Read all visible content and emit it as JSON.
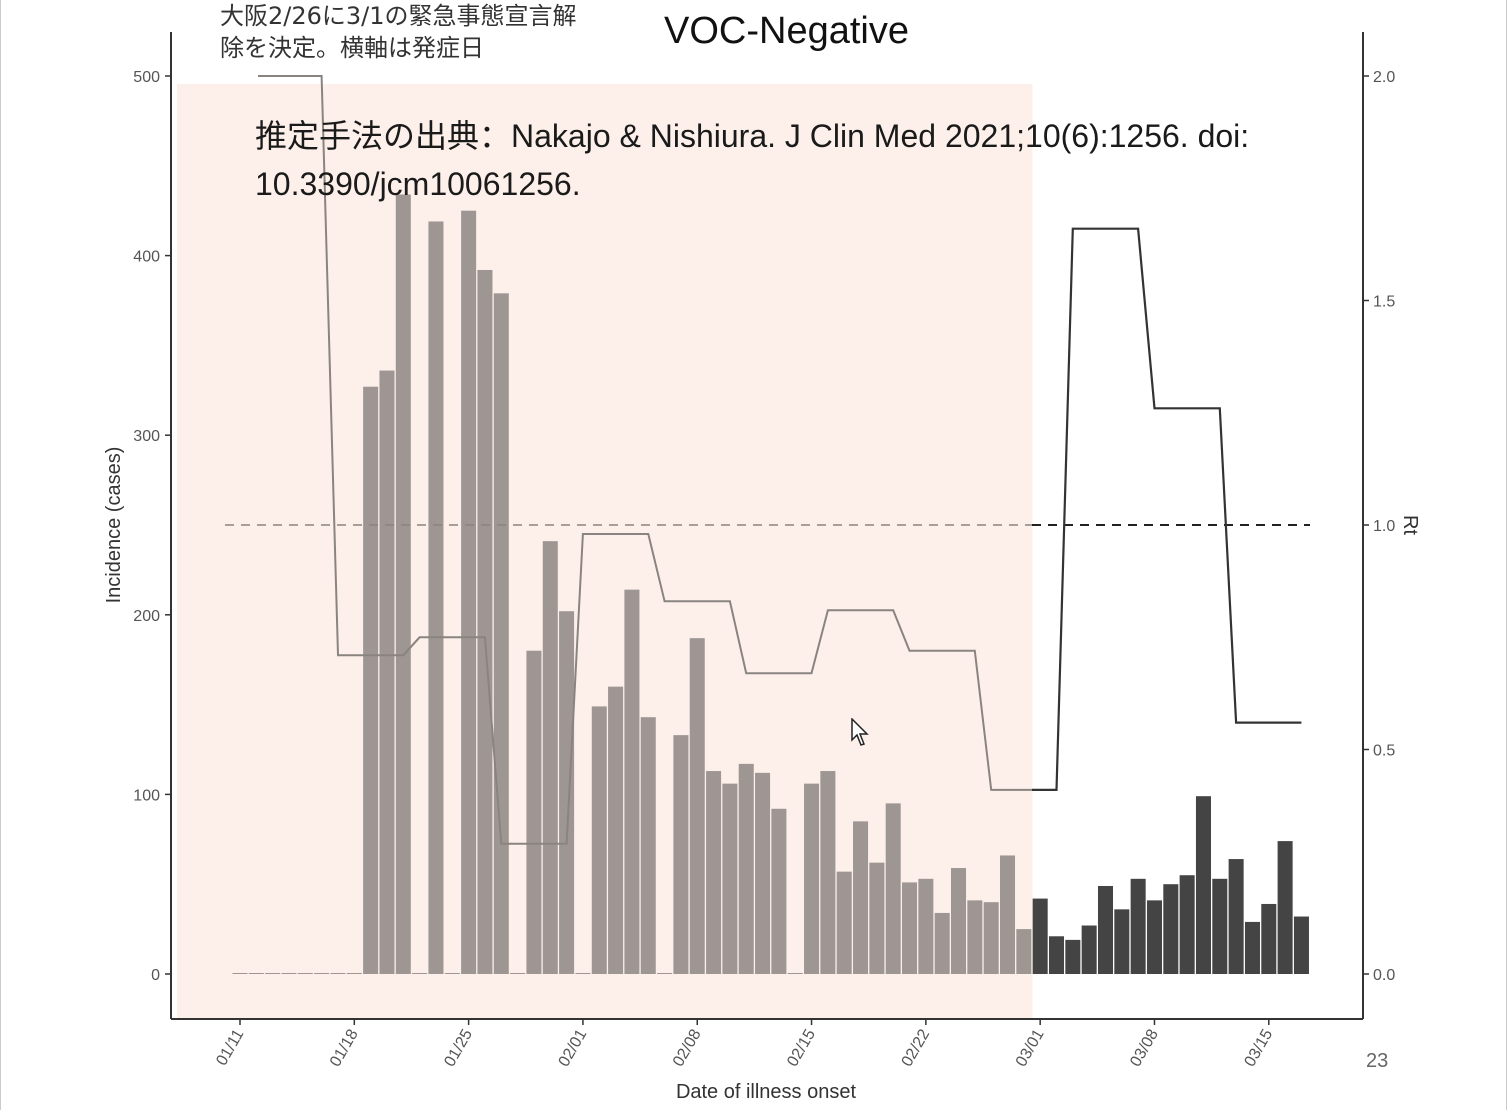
{
  "slide": {
    "note": "大阪2/26に3/1の緊急事態宣言解\n除を決定。横軸は発症日",
    "title": "VOC-Negative",
    "citation": "推定手法の出典：Nakajo & Nishiura.  J Clin Med 2021;10(6):1256. doi: 10.3390/jcm10061256.",
    "slide_number": "23"
  },
  "colors": {
    "shade": "#fdf0ea",
    "bar_before": "#9e9692",
    "bar_after": "#444444",
    "rt_line": "#333333",
    "axis": "#333333"
  },
  "chart_data": {
    "type": "bar",
    "title": "VOC-Negative",
    "xlabel": "Date of illness onset",
    "ylabel": "Incidence (cases)",
    "y2label": "Rt",
    "x_ticks": [
      "01/11",
      "01/18",
      "01/25",
      "02/01",
      "02/08",
      "02/15",
      "02/22",
      "03/01",
      "03/08",
      "03/15"
    ],
    "y_ticks": [
      "0",
      "100",
      "200",
      "300",
      "400",
      "500"
    ],
    "y2_ticks": [
      "0.0",
      "0.5",
      "1.0",
      "1.5",
      "2.0"
    ],
    "ylim": [
      0,
      500
    ],
    "y2lim": [
      0,
      2
    ],
    "shaded_until": "02/28",
    "dates": [
      "01/11",
      "01/12",
      "01/13",
      "01/14",
      "01/15",
      "01/16",
      "01/17",
      "01/18",
      "01/19",
      "01/20",
      "01/21",
      "01/22",
      "01/23",
      "01/24",
      "01/25",
      "01/26",
      "01/27",
      "01/28",
      "01/29",
      "01/30",
      "01/31",
      "02/01",
      "02/02",
      "02/03",
      "02/04",
      "02/05",
      "02/06",
      "02/07",
      "02/08",
      "02/09",
      "02/10",
      "02/11",
      "02/12",
      "02/13",
      "02/14",
      "02/15",
      "02/16",
      "02/17",
      "02/18",
      "02/19",
      "02/20",
      "02/21",
      "02/22",
      "02/23",
      "02/24",
      "02/25",
      "02/26",
      "02/27",
      "02/28",
      "03/01",
      "03/02",
      "03/03",
      "03/04",
      "03/05",
      "03/06",
      "03/07",
      "03/08",
      "03/09",
      "03/10",
      "03/11",
      "03/12",
      "03/13",
      "03/14",
      "03/15",
      "03/16",
      "03/17"
    ],
    "series": [
      {
        "name": "Incidence",
        "values": [
          0,
          0,
          0,
          0,
          0,
          0,
          0,
          0,
          327,
          336,
          434,
          0,
          419,
          0,
          425,
          392,
          379,
          0,
          180,
          241,
          202,
          0,
          149,
          160,
          214,
          143,
          0,
          133,
          187,
          113,
          106,
          117,
          112,
          92,
          0,
          106,
          113,
          57,
          85,
          62,
          95,
          51,
          53,
          34,
          59,
          41,
          40,
          66,
          25,
          42,
          21,
          19,
          27,
          49,
          36,
          53,
          41,
          50,
          55,
          99,
          53,
          64,
          29,
          39,
          74,
          32
        ]
      },
      {
        "name": "Rt",
        "values": [
          2.0,
          2.0,
          2.0,
          2.0,
          2.0,
          2.0,
          0.71,
          0.71,
          0.71,
          0.71,
          0.71,
          0.75,
          0.75,
          0.75,
          0.75,
          0.75,
          0.29,
          0.29,
          0.29,
          0.29,
          0.29,
          0.98,
          0.98,
          0.98,
          0.98,
          0.98,
          0.83,
          0.83,
          0.83,
          0.83,
          0.83,
          0.67,
          0.67,
          0.67,
          0.67,
          0.67,
          0.81,
          0.81,
          0.81,
          0.81,
          0.81,
          0.72,
          0.72,
          0.72,
          0.72,
          0.72,
          0.41,
          0.41,
          0.41,
          0.41,
          0.41,
          1.66,
          1.66,
          1.66,
          1.66,
          1.66,
          1.26,
          1.26,
          1.26,
          1.26,
          1.26,
          0.56,
          0.56,
          0.56,
          0.56,
          0.56
        ]
      }
    ]
  }
}
